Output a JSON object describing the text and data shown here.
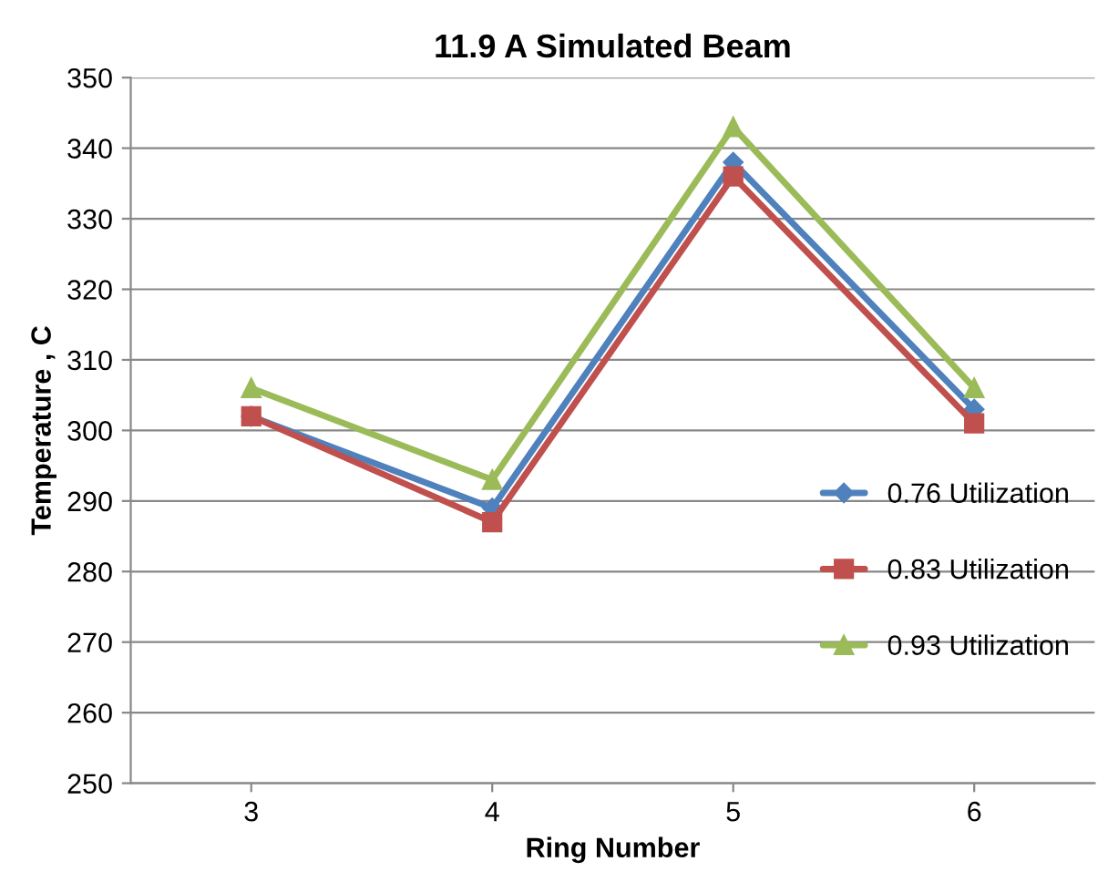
{
  "chart_data": {
    "type": "line",
    "title": "11.9 A Simulated Beam",
    "xlabel": "Ring Number",
    "ylabel": "Temperature , C",
    "categories": [
      "3",
      "4",
      "5",
      "6"
    ],
    "series": [
      {
        "name": "0.76 Utilization",
        "color": "#4f81bd",
        "marker": "diamond",
        "values": [
          302,
          289,
          338,
          303
        ]
      },
      {
        "name": "0.83 Utilization",
        "color": "#c0504d",
        "marker": "square",
        "values": [
          302,
          287,
          336,
          301
        ]
      },
      {
        "name": "0.93 Utilization",
        "color": "#9bbb59",
        "marker": "triangle",
        "values": [
          306,
          293,
          343,
          306
        ]
      }
    ],
    "ylim": [
      250,
      350
    ],
    "yticks": [
      250,
      260,
      270,
      280,
      290,
      300,
      310,
      320,
      330,
      340,
      350
    ],
    "grid": "y",
    "legend": "right",
    "line_style": "solid"
  }
}
